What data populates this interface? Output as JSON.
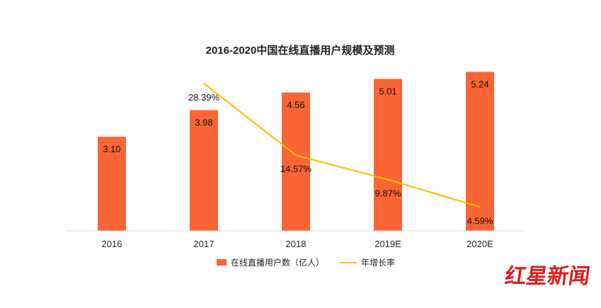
{
  "chart_data": {
    "type": "bar",
    "title": "2016-2020中国在线直播用户规模及预测",
    "categories": [
      "2016",
      "2017",
      "2018",
      "2019E",
      "2020E"
    ],
    "series": [
      {
        "name": "在线直播用户数（亿人）",
        "type": "bar",
        "values": [
          3.1,
          3.98,
          4.56,
          5.01,
          5.24
        ],
        "labels": [
          "3.10",
          "3.98",
          "4.56",
          "5.01",
          "5.24"
        ],
        "color": "#FA6535"
      },
      {
        "name": "年增长率",
        "type": "line",
        "values": [
          null,
          28.39,
          14.57,
          9.87,
          4.59
        ],
        "labels": [
          "",
          "28.39%",
          "14.57%",
          "9.87%",
          "4.59%"
        ],
        "color": "#FFC000"
      }
    ],
    "ylim_left": [
      0,
      6
    ],
    "ylim_right": [
      0,
      30
    ],
    "grid": false,
    "legend_position": "bottom"
  },
  "watermark": {
    "text": "红星新闻",
    "color": "#E01B1B"
  }
}
